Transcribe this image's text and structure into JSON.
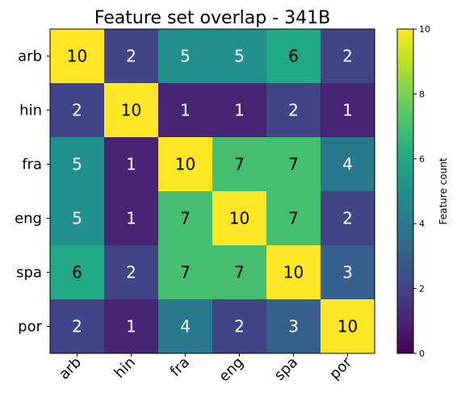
{
  "chart_data": {
    "type": "heatmap",
    "title": "Feature set overlap - 341B",
    "x_labels": [
      "arb",
      "hin",
      "fra",
      "eng",
      "spa",
      "por"
    ],
    "y_labels": [
      "arb",
      "hin",
      "fra",
      "eng",
      "spa",
      "por"
    ],
    "values": [
      [
        10,
        2,
        5,
        5,
        6,
        2
      ],
      [
        2,
        10,
        1,
        1,
        2,
        1
      ],
      [
        5,
        1,
        10,
        7,
        7,
        4
      ],
      [
        5,
        1,
        7,
        10,
        7,
        2
      ],
      [
        6,
        2,
        7,
        7,
        10,
        3
      ],
      [
        2,
        1,
        4,
        2,
        3,
        10
      ]
    ],
    "colormap": "viridis",
    "vmin": 0,
    "vmax": 10,
    "colorbar": {
      "label": "Feature count",
      "ticks": [
        "0",
        "2",
        "4",
        "6",
        "8",
        "10"
      ]
    },
    "grid": false
  }
}
